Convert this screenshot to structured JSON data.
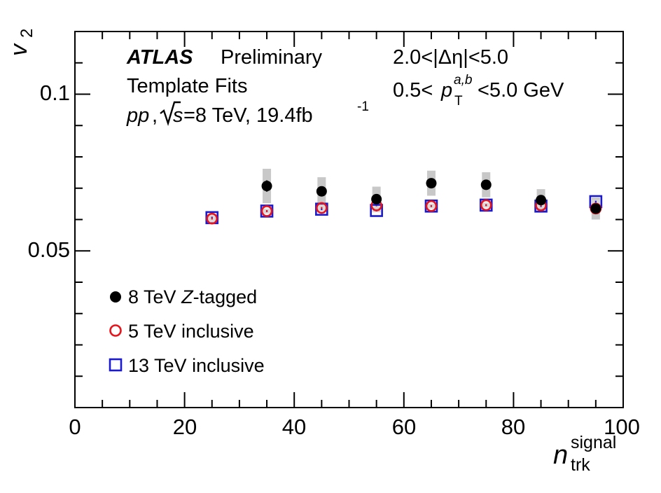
{
  "chart_data": {
    "type": "scatter",
    "ylabel_main": "v",
    "ylabel_sub": "2",
    "xlabel_main": "n",
    "xlabel_sub": "trk",
    "xlabel_sup": "signal",
    "xlim": [
      0,
      100
    ],
    "ylim": [
      0.0,
      0.12
    ],
    "x_ticks": [
      "0",
      "20",
      "40",
      "60",
      "80",
      "100"
    ],
    "y_ticks": [
      "0.05",
      "0.1"
    ],
    "annotations": {
      "experiment": "ATLAS",
      "status": "Preliminary",
      "method": "Template Fits",
      "system_pp": "pp",
      "sqrt_s": "s",
      "energy_lumi": "=8 TeV, 19.4fb",
      "lumi_exp": "-1",
      "deta_cut": "2.0<|Δη|<5.0",
      "pt_prefix": "0.5<",
      "pt_var": "p",
      "pt_sup": "a,b",
      "pt_sub": "T",
      "pt_suffix": "<5.0 GeV"
    },
    "legend": [
      {
        "marker": "filled-circle",
        "color": "#000000",
        "text_a": "8 TeV ",
        "text_italic": "Z",
        "text_b": "-tagged"
      },
      {
        "marker": "open-circle",
        "color": "#e8141c",
        "text_a": "5 TeV inclusive",
        "text_italic": "",
        "text_b": ""
      },
      {
        "marker": "open-square",
        "color": "#1b1bcc",
        "text_a": "13 TeV inclusive",
        "text_italic": "",
        "text_b": ""
      }
    ],
    "series": [
      {
        "name": "8 TeV Z-tagged",
        "color": "#000000",
        "marker": "filled-circle",
        "x": [
          35,
          45,
          55,
          65,
          75,
          85,
          95
        ],
        "y": [
          0.0707,
          0.069,
          0.0665,
          0.0716,
          0.0711,
          0.0662,
          0.0635
        ],
        "stat_err": [
          0.0018,
          0.001,
          0.0008,
          0.0008,
          0.0008,
          0.0008,
          0.0018
        ],
        "sys_err": [
          0.0055,
          0.0045,
          0.004,
          0.004,
          0.004,
          0.0035,
          0.0035
        ]
      },
      {
        "name": "5 TeV inclusive",
        "color": "#e8141c",
        "marker": "open-circle",
        "x": [
          25,
          35,
          45,
          55,
          65,
          75,
          85,
          95
        ],
        "y": [
          0.0603,
          0.0627,
          0.0637,
          0.0645,
          0.0643,
          0.0646,
          0.0645,
          0.0635
        ],
        "stat_err": [
          0.0003,
          0.0003,
          0.0003,
          0.0003,
          0.0003,
          0.0003,
          0.0003,
          0.0003
        ],
        "sys_err": [
          0.0012,
          0.0008,
          0.0008,
          0.0008,
          0.0008,
          0.0008,
          0.0008,
          0.0008
        ]
      },
      {
        "name": "13 TeV inclusive",
        "color": "#1b1bcc",
        "marker": "open-square",
        "x": [
          25,
          35,
          45,
          55,
          65,
          75,
          85,
          95
        ],
        "y": [
          0.0606,
          0.0627,
          0.0633,
          0.0629,
          0.0643,
          0.0646,
          0.0643,
          0.0657
        ],
        "stat_err": [
          0.0003,
          0.0003,
          0.0003,
          0.0003,
          0.0003,
          0.0003,
          0.0003,
          0.0003
        ],
        "sys_err": [
          0.0008,
          0.0006,
          0.0006,
          0.0006,
          0.0006,
          0.0006,
          0.0006,
          0.0006
        ]
      }
    ]
  }
}
